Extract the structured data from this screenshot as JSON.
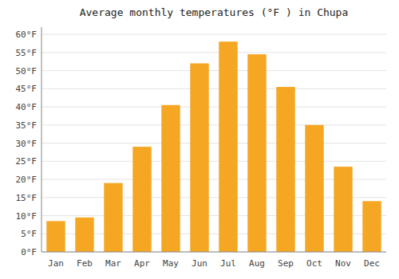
{
  "chart_data": {
    "type": "bar",
    "title": "Average monthly temperatures (°F ) in Chupa",
    "categories": [
      "Jan",
      "Feb",
      "Mar",
      "Apr",
      "May",
      "Jun",
      "Jul",
      "Aug",
      "Sep",
      "Oct",
      "Nov",
      "Dec"
    ],
    "values": [
      8.5,
      9.5,
      19,
      29,
      40.5,
      52,
      58,
      54.5,
      45.5,
      35,
      23.5,
      14
    ],
    "color": "#F5A623",
    "ylim": [
      0,
      62
    ],
    "yticks": [
      {
        "value": 0,
        "label": "0°F"
      },
      {
        "value": 5,
        "label": "5°F"
      },
      {
        "value": 10,
        "label": "10°F"
      },
      {
        "value": 15,
        "label": "15°F"
      },
      {
        "value": 20,
        "label": "20°F"
      },
      {
        "value": 25,
        "label": "25°F"
      },
      {
        "value": 30,
        "label": "30°F"
      },
      {
        "value": 35,
        "label": "35°F"
      },
      {
        "value": 40,
        "label": "40°F"
      },
      {
        "value": 45,
        "label": "45°F"
      },
      {
        "value": 50,
        "label": "50°F"
      },
      {
        "value": 55,
        "label": "55°F"
      },
      {
        "value": 60,
        "label": "60°F"
      }
    ],
    "grid": true
  }
}
